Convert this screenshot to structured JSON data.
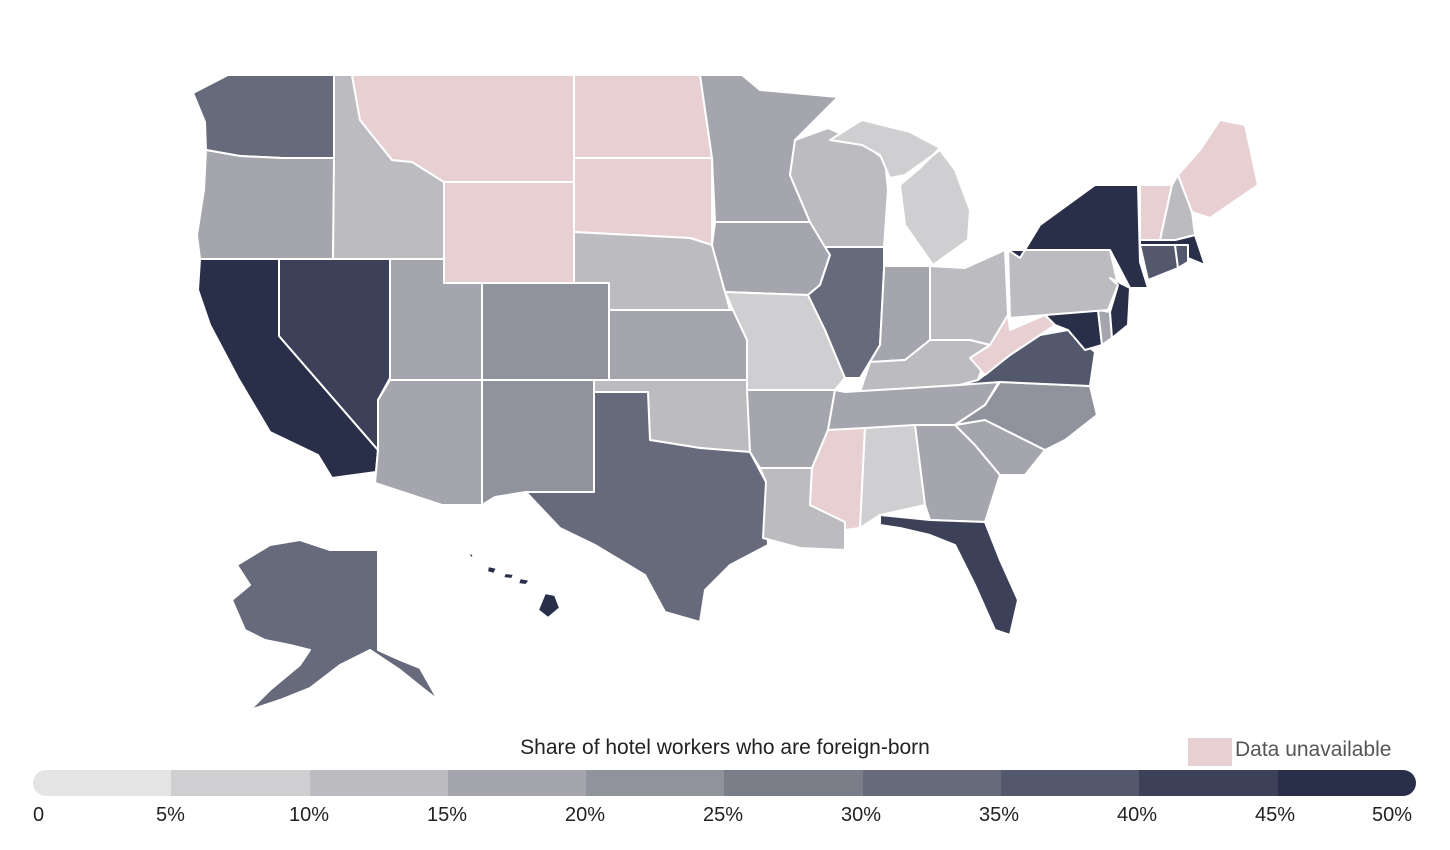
{
  "legend": {
    "title": "Share of hotel workers who are foreign-born",
    "unavailable_label": "Data unavailable",
    "unavailable_color": "#e8cfd1",
    "ticks": [
      "0",
      "5%",
      "10%",
      "15%",
      "20%",
      "25%",
      "30%",
      "35%",
      "40%",
      "45%",
      "50%"
    ],
    "scale_colors": [
      "#e4e4e5",
      "#cfcfd2",
      "#bbbbc0",
      "#a5a6ad",
      "#90929c",
      "#7b7d89",
      "#666a7b",
      "#54586c",
      "#3c4159",
      "#2a2f49"
    ]
  },
  "states": [
    {
      "name": "Washington",
      "bin": 6
    },
    {
      "name": "Oregon",
      "bin": 3
    },
    {
      "name": "California",
      "bin": 9
    },
    {
      "name": "Nevada",
      "bin": 8
    },
    {
      "name": "Idaho",
      "bin": 2
    },
    {
      "name": "Montana",
      "bin": null
    },
    {
      "name": "Wyoming",
      "bin": null
    },
    {
      "name": "Utah",
      "bin": 3
    },
    {
      "name": "Arizona",
      "bin": 3
    },
    {
      "name": "Colorado",
      "bin": 4
    },
    {
      "name": "New Mexico",
      "bin": 4
    },
    {
      "name": "North Dakota",
      "bin": null
    },
    {
      "name": "South Dakota",
      "bin": null
    },
    {
      "name": "Nebraska",
      "bin": 2
    },
    {
      "name": "Kansas",
      "bin": 3
    },
    {
      "name": "Oklahoma",
      "bin": 2
    },
    {
      "name": "Texas",
      "bin": 6
    },
    {
      "name": "Minnesota",
      "bin": 3
    },
    {
      "name": "Iowa",
      "bin": 3
    },
    {
      "name": "Missouri",
      "bin": 1
    },
    {
      "name": "Arkansas",
      "bin": 3
    },
    {
      "name": "Louisiana",
      "bin": 2
    },
    {
      "name": "Wisconsin",
      "bin": 2
    },
    {
      "name": "Illinois",
      "bin": 6
    },
    {
      "name": "Michigan",
      "bin": 1
    },
    {
      "name": "Indiana",
      "bin": 3
    },
    {
      "name": "Ohio",
      "bin": 2
    },
    {
      "name": "Kentucky",
      "bin": 2
    },
    {
      "name": "Tennessee",
      "bin": 3
    },
    {
      "name": "Mississippi",
      "bin": null
    },
    {
      "name": "Alabama",
      "bin": 1
    },
    {
      "name": "Georgia",
      "bin": 3
    },
    {
      "name": "Florida",
      "bin": 8
    },
    {
      "name": "South Carolina",
      "bin": 3
    },
    {
      "name": "North Carolina",
      "bin": 4
    },
    {
      "name": "Virginia",
      "bin": 7
    },
    {
      "name": "West Virginia",
      "bin": null
    },
    {
      "name": "Maryland",
      "bin": 9
    },
    {
      "name": "Delaware",
      "bin": 3
    },
    {
      "name": "Pennsylvania",
      "bin": 2
    },
    {
      "name": "New Jersey",
      "bin": 9
    },
    {
      "name": "New York",
      "bin": 9
    },
    {
      "name": "Connecticut",
      "bin": 7
    },
    {
      "name": "Rhode Island",
      "bin": 7
    },
    {
      "name": "Massachusetts",
      "bin": 9
    },
    {
      "name": "Vermont",
      "bin": null
    },
    {
      "name": "New Hampshire",
      "bin": 2
    },
    {
      "name": "Maine",
      "bin": null
    },
    {
      "name": "Alaska",
      "bin": 6
    },
    {
      "name": "Hawaii",
      "bin": 9
    }
  ]
}
